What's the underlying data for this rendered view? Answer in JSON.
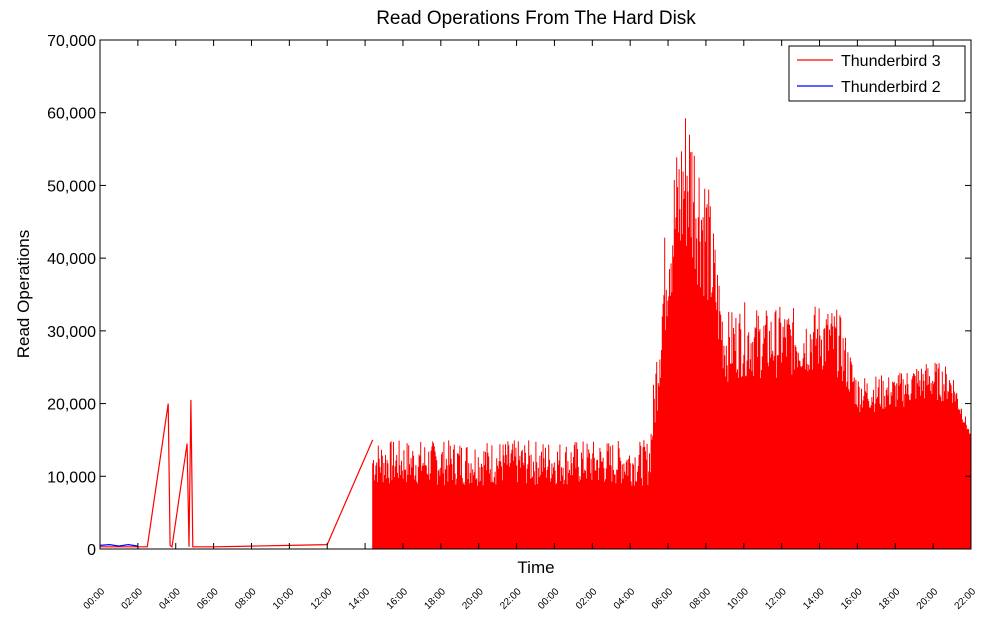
{
  "chart_data": {
    "type": "line",
    "title": "Read Operations From The Hard Disk",
    "xlabel": "Time",
    "ylabel": "Read Operations",
    "ylim": [
      0,
      70000
    ],
    "yticks": [
      "0",
      "10,000",
      "20,000",
      "30,000",
      "40,000",
      "50,000",
      "60,000",
      "70,000"
    ],
    "xticks": [
      "00:00",
      "02:00",
      "04:00",
      "06:00",
      "08:00",
      "10:00",
      "12:00",
      "14:00",
      "16:00",
      "18:00",
      "20:00",
      "22:00",
      "00:00",
      "02:00",
      "04:00",
      "06:00",
      "08:00",
      "10:00",
      "12:00",
      "14:00",
      "16:00",
      "18:00",
      "20:00",
      "22:00"
    ],
    "grid": false,
    "legend_position": "top-right",
    "colors": {
      "series_1": "#ff0000",
      "series_2": "#0000ff"
    },
    "series": [
      {
        "name": "Thunderbird 3",
        "color": "#ff0000",
        "x_hours": [
          0,
          2.5,
          3.6,
          3.7,
          3.8,
          4.6,
          4.7,
          4.8,
          4.9,
          5.0,
          6,
          8,
          10,
          12,
          14.4,
          15,
          16,
          17,
          18,
          19,
          20,
          21,
          22,
          23,
          24,
          25,
          26,
          27,
          28,
          29,
          30,
          31,
          32,
          33,
          34,
          35,
          36,
          37,
          38,
          39,
          40,
          41,
          42,
          43,
          44,
          45,
          46
        ],
        "baseline": [
          0,
          200,
          200,
          200,
          200,
          200,
          200,
          200,
          200,
          200,
          200,
          300,
          400,
          500,
          1000,
          1000,
          1000,
          1000,
          1000,
          1000,
          1000,
          1000,
          1000,
          1000,
          1000,
          1000,
          1000,
          1000,
          1000,
          1000,
          9500,
          10000,
          10500,
          11000,
          11000,
          11500,
          11500,
          12000,
          12000,
          12000,
          12500,
          12500,
          13000,
          13000,
          13500,
          14000,
          15000
        ],
        "peak": [
          300,
          300,
          20000,
          500,
          300,
          14500,
          300,
          20500,
          300,
          300,
          300,
          400,
          500,
          600,
          15000,
          15000,
          15000,
          15000,
          15000,
          15000,
          15000,
          15000,
          15000,
          15000,
          15000,
          15000,
          15000,
          15000,
          15000,
          15000,
          50000,
          63500,
          53000,
          32500,
          34000,
          33000,
          33500,
          33000,
          34000,
          33000,
          24000,
          24000,
          24000,
          25500,
          26000,
          25000,
          15500
        ]
      },
      {
        "name": "Thunderbird 2",
        "color": "#0000ff",
        "x_hours": [
          0,
          0.5,
          1.0,
          1.5,
          2.0
        ],
        "values": [
          500,
          600,
          400,
          600,
          400
        ]
      }
    ]
  }
}
